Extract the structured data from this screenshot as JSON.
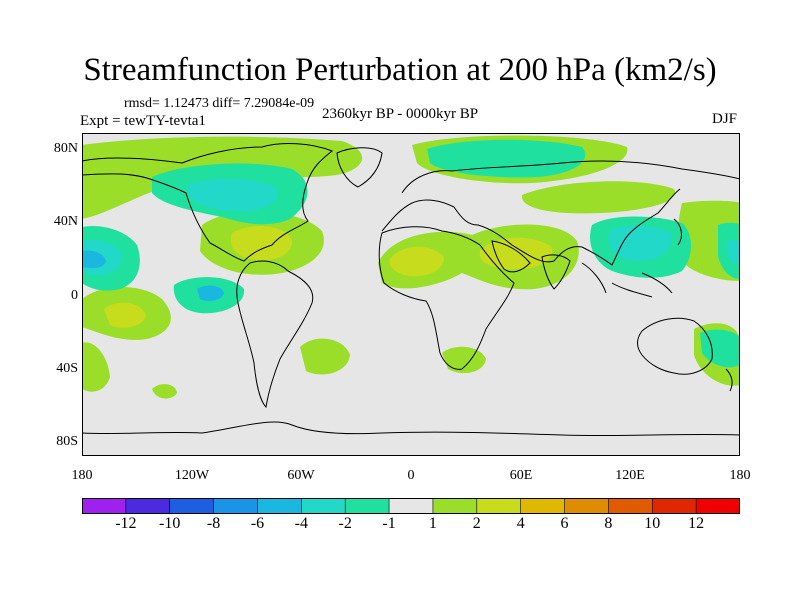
{
  "title": "Streamfunction Perturbation at 200 hPa (km2/s)",
  "stats": "rmsd= 1.12473  diff= 7.29084e-09",
  "experiment": "Expt = tewTY-tevta1",
  "period": "2360kyr BP - 0000kyr BP",
  "season": "DJF",
  "lat_labels": [
    "80N",
    "40N",
    "0",
    "40S",
    "80S"
  ],
  "lon_labels": [
    "180",
    "120W",
    "60W",
    "0",
    "60E",
    "120E",
    "180"
  ],
  "colorbar": {
    "labels": [
      "-12",
      "-10",
      "-8",
      "-6",
      "-4",
      "-2",
      "-1",
      "1",
      "2",
      "4",
      "6",
      "8",
      "10",
      "12"
    ],
    "colors": [
      "#a020f0",
      "#4b2ae0",
      "#1d5fe0",
      "#1a94e6",
      "#1ab8e0",
      "#22d8c8",
      "#20e0a0",
      "#e6e6e6",
      "#9ade2a",
      "#c8dc1e",
      "#e0b800",
      "#e08c00",
      "#e05a00",
      "#e02800",
      "#f00000"
    ]
  },
  "colors": {
    "background": "#e6e6e6",
    "coast": "#000000",
    "pos1": "#9ade2a",
    "pos2": "#c8dc1e",
    "pos3": "#e0b800",
    "neg1": "#20e0a0",
    "neg2": "#22d8c8",
    "neg3": "#1ab8e0"
  }
}
